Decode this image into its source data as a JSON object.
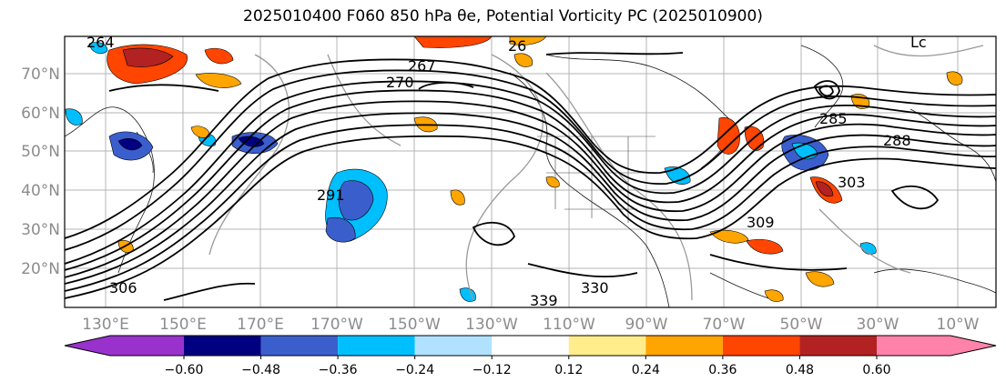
{
  "title": "2025010400 F060 850 hPa θe, Potential Vorticity PC (2025010900)",
  "lat_labels": [
    "70°N",
    "60°N",
    "50°N",
    "40°N",
    "30°N",
    "20°N"
  ],
  "lon_labels": [
    "130°E",
    "150°E",
    "170°E",
    "170°W",
    "150°W",
    "130°W",
    "110°W",
    "90°W",
    "70°W",
    "50°W",
    "30°W",
    "10°W"
  ],
  "contour_labels": [
    "264",
    "267",
    "270",
    "285",
    "288",
    "291",
    "303",
    "309",
    "330",
    "339",
    "306",
    "Lc",
    "26"
  ],
  "colorbar": {
    "colors": [
      "#9932CC",
      "#000080",
      "#3A5FCD",
      "#00BFFF",
      "#B0E2FF",
      "#FFFFFF",
      "#FFEC8B",
      "#FFA500",
      "#FF4500",
      "#B22222",
      "#FF82AB"
    ],
    "tick_labels": [
      "−0.60",
      "−0.48",
      "−0.36",
      "−0.24",
      "−0.12",
      "0.12",
      "0.24",
      "0.36",
      "0.48",
      "0.60"
    ]
  }
}
